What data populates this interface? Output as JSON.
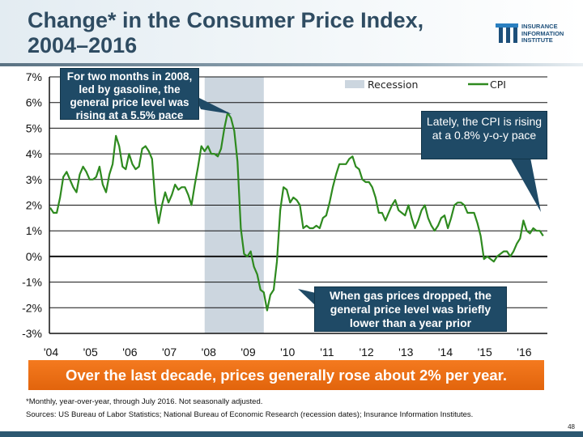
{
  "header": {
    "title_line1": "Change* in the Consumer Price Index,",
    "title_line2": "2004–2016",
    "logo": {
      "text_line1": "INSURANCE",
      "text_line2": "INFORMATION",
      "text_line3": "INSTITUTE"
    }
  },
  "chart_data": {
    "type": "line",
    "title": "",
    "xlabel": "",
    "ylabel": "",
    "ylim": [
      -3,
      7
    ],
    "yticks": [
      7,
      6,
      5,
      4,
      3,
      2,
      1,
      0,
      -1,
      -2,
      -3
    ],
    "ytick_labels": [
      "7%",
      "6%",
      "5%",
      "4%",
      "3%",
      "2%",
      "1%",
      "0%",
      "-1%",
      "-2%",
      "-3%"
    ],
    "xtick_labels": [
      "'04",
      "'05",
      "'06",
      "'07",
      "'08",
      "'09",
      "'10",
      "'11",
      "'12",
      "'13",
      "'14",
      "'15",
      "'16"
    ],
    "x_start": "2004-01",
    "x_end": "2016-07",
    "frequency": "monthly",
    "grid": true,
    "legend": {
      "placement": "top-right",
      "entries": [
        {
          "name": "Recession",
          "color": "#ccd6df"
        },
        {
          "name": "CPI",
          "color": "#2e8a1f"
        }
      ]
    },
    "recession": {
      "start": "2007-12",
      "end": "2009-06"
    },
    "series": [
      {
        "name": "CPI",
        "color": "#2e8a1f",
        "values": [
          1.9,
          1.7,
          1.7,
          2.3,
          3.1,
          3.3,
          3.0,
          2.7,
          2.5,
          3.2,
          3.5,
          3.3,
          3.0,
          3.0,
          3.1,
          3.5,
          2.8,
          2.5,
          3.2,
          3.6,
          4.7,
          4.3,
          3.5,
          3.4,
          4.0,
          3.6,
          3.4,
          3.5,
          4.2,
          4.3,
          4.1,
          3.8,
          2.1,
          1.3,
          2.0,
          2.5,
          2.1,
          2.4,
          2.8,
          2.6,
          2.7,
          2.7,
          2.4,
          2.0,
          2.8,
          3.5,
          4.3,
          4.1,
          4.3,
          4.0,
          4.0,
          3.9,
          4.2,
          5.0,
          5.6,
          5.4,
          4.9,
          3.7,
          1.1,
          0.1,
          0.0,
          0.2,
          -0.4,
          -0.7,
          -1.3,
          -1.4,
          -2.1,
          -1.5,
          -1.3,
          -0.2,
          1.8,
          2.7,
          2.6,
          2.1,
          2.3,
          2.2,
          2.0,
          1.1,
          1.2,
          1.1,
          1.1,
          1.2,
          1.1,
          1.5,
          1.6,
          2.1,
          2.7,
          3.2,
          3.6,
          3.6,
          3.6,
          3.8,
          3.9,
          3.5,
          3.4,
          3.0,
          2.9,
          2.9,
          2.7,
          2.3,
          1.7,
          1.7,
          1.4,
          1.7,
          2.0,
          2.2,
          1.8,
          1.7,
          1.6,
          2.0,
          1.5,
          1.1,
          1.4,
          1.8,
          2.0,
          1.5,
          1.2,
          1.0,
          1.2,
          1.5,
          1.6,
          1.1,
          1.5,
          2.0,
          2.1,
          2.1,
          2.0,
          1.7,
          1.7,
          1.7,
          1.3,
          0.8,
          -0.1,
          0.0,
          -0.1,
          -0.2,
          0.0,
          0.1,
          0.2,
          0.2,
          0.0,
          0.2,
          0.5,
          0.7,
          1.4,
          1.0,
          0.9,
          1.1,
          1.0,
          1.0,
          0.8
        ]
      }
    ],
    "annotations": [
      "For two months in 2008, led by gasoline, the general price level was rising at a 5.5%  pace",
      "Lately, the CPI is rising at a 0.8% y-o-y pace",
      "When gas prices dropped, the general price level was briefly lower than a year prior"
    ]
  },
  "banner": "Over the last decade, prices generally rose about 2% per year.",
  "footnote": "*Monthly, year-over-year, through July 2016. Not seasonally adjusted.",
  "sources": "Sources: US Bureau of Labor Statistics; National Bureau of Economic Research (recession dates); Insurance Information Institutes.",
  "page_number": "48"
}
